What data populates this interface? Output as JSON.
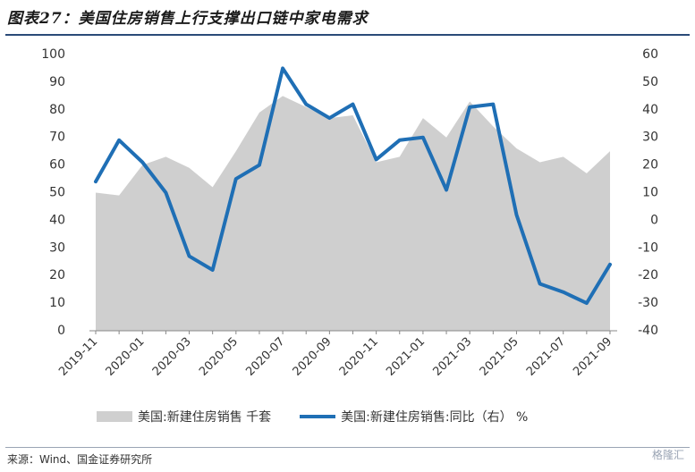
{
  "title": "图表27：美国住房销售上行支撑出口链中家电需求",
  "source": "来源：Wind、国金证券研究所",
  "watermark": "格隆汇",
  "colors": {
    "area": "#cfcfcf",
    "line": "#1f6fb5",
    "axis": "#888888",
    "title_rule": "#2a4a78"
  },
  "chart_data": {
    "type": "area+line",
    "x": [
      "2019-11",
      "2019-12",
      "2020-01",
      "2020-02",
      "2020-03",
      "2020-04",
      "2020-05",
      "2020-06",
      "2020-07",
      "2020-08",
      "2020-09",
      "2020-10",
      "2020-11",
      "2020-12",
      "2021-01",
      "2021-02",
      "2021-03",
      "2021-04",
      "2021-05",
      "2021-06",
      "2021-07",
      "2021-08",
      "2021-09"
    ],
    "tick_labels": [
      "2019-11",
      "2020-01",
      "2020-03",
      "2020-05",
      "2020-07",
      "2020-09",
      "2020-11",
      "2021-01",
      "2021-03",
      "2021-05",
      "2021-07",
      "2021-09"
    ],
    "series": [
      {
        "name": "美国:新建住房销售 千套",
        "axis": "left",
        "kind": "area",
        "values": [
          50,
          49,
          60,
          63,
          59,
          52,
          65,
          79,
          85,
          81,
          77,
          78,
          61,
          63,
          77,
          70,
          83,
          74,
          66,
          61,
          63,
          57,
          65
        ]
      },
      {
        "name": "美国:新建住房销售:同比（右） %",
        "axis": "right",
        "kind": "line",
        "values": [
          14,
          29,
          21,
          10,
          -13,
          -18,
          15,
          20,
          55,
          42,
          37,
          42,
          22,
          29,
          30,
          11,
          41,
          42,
          2,
          -23,
          -26,
          -30,
          -16
        ]
      }
    ],
    "y_left": {
      "min": 0,
      "max": 100,
      "ticks": [
        0,
        10,
        20,
        30,
        40,
        50,
        60,
        70,
        80,
        90,
        100
      ]
    },
    "y_right": {
      "min": -40,
      "max": 60,
      "ticks": [
        -40,
        -30,
        -20,
        -10,
        0,
        10,
        20,
        30,
        40,
        50,
        60
      ]
    },
    "legend_position": "bottom"
  }
}
